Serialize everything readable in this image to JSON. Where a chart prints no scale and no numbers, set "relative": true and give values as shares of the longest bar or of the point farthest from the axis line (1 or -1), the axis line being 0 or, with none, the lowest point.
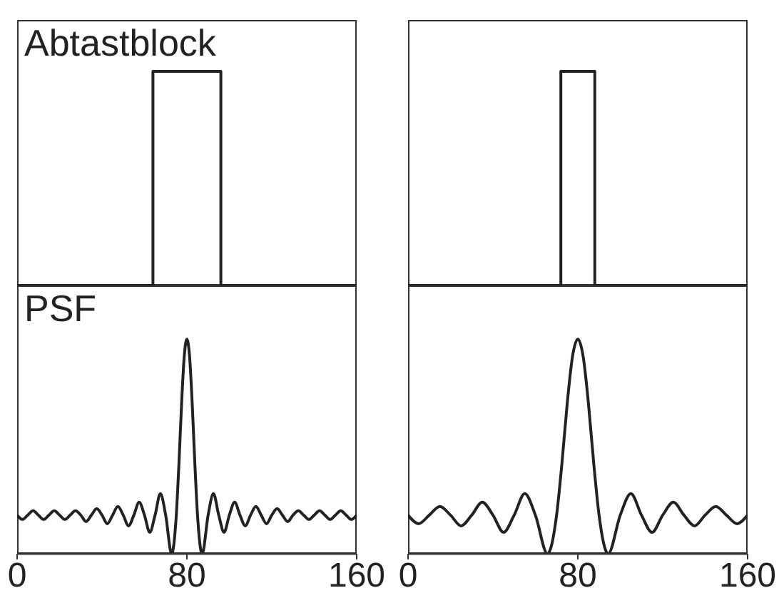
{
  "chart_data": [
    {
      "type": "step",
      "title": "Abtastblock",
      "relative": true,
      "color": "#222222",
      "x": [
        0,
        64,
        96,
        160
      ],
      "values": [
        0,
        1,
        0,
        0
      ],
      "xlim": [
        0,
        160
      ],
      "xticks": [
        0,
        80,
        160
      ],
      "tick_labels": false
    },
    {
      "type": "step",
      "relative": true,
      "color": "#222222",
      "x": [
        0,
        72,
        88,
        160
      ],
      "values": [
        0,
        1,
        0,
        0
      ],
      "xlim": [
        0,
        160
      ],
      "xticks": [
        0,
        80,
        160
      ],
      "tick_labels": false
    },
    {
      "type": "line",
      "title": "PSF",
      "relative": true,
      "color": "#222222",
      "x": [
        0,
        2.5,
        5,
        7.5,
        10,
        12.5,
        15,
        17.5,
        20,
        22.5,
        25,
        27.5,
        30,
        32.5,
        35,
        37.5,
        40,
        42.5,
        45,
        47.5,
        50,
        52.5,
        55,
        57.5,
        60,
        62.5,
        65,
        67.5,
        70,
        72.8,
        75,
        76.25,
        77.5,
        78.75,
        80,
        81.25,
        82.5,
        83.75,
        85,
        87.2,
        90,
        92.5,
        95,
        97.5,
        100,
        102.5,
        105,
        107.5,
        110,
        112.5,
        115,
        117.5,
        120,
        122.5,
        125,
        127.5,
        130,
        132.5,
        135,
        137.5,
        140,
        142.5,
        145,
        147.5,
        150,
        152.5,
        155,
        157.5,
        160
      ],
      "values": [
        0.18,
        0.16,
        0.18,
        0.2,
        0.18,
        0.16,
        0.18,
        0.2,
        0.18,
        0.16,
        0.18,
        0.2,
        0.18,
        0.15,
        0.18,
        0.21,
        0.18,
        0.14,
        0.18,
        0.22,
        0.18,
        0.13,
        0.18,
        0.24,
        0.18,
        0.1,
        0.18,
        0.28,
        0.18,
        0,
        0.18,
        0.42,
        0.7,
        0.92,
        1,
        0.92,
        0.7,
        0.42,
        0.18,
        0,
        0.18,
        0.28,
        0.18,
        0.1,
        0.18,
        0.24,
        0.18,
        0.13,
        0.18,
        0.22,
        0.18,
        0.14,
        0.18,
        0.21,
        0.18,
        0.15,
        0.18,
        0.2,
        0.18,
        0.16,
        0.18,
        0.2,
        0.18,
        0.16,
        0.18,
        0.2,
        0.18,
        0.16,
        0.18
      ],
      "xlim": [
        0,
        160
      ],
      "xticks": [
        0,
        80,
        160
      ],
      "tick_labels": "x"
    },
    {
      "type": "line",
      "relative": true,
      "color": "#222222",
      "x": [
        0,
        5,
        10,
        15,
        20,
        25,
        30,
        35,
        40,
        45,
        50,
        55,
        60,
        65.7,
        70,
        72.5,
        75,
        77.5,
        80,
        82.5,
        85,
        87.5,
        90,
        94.3,
        100,
        105,
        110,
        115,
        120,
        125,
        130,
        135,
        140,
        145,
        150,
        155,
        160
      ],
      "values": [
        0.18,
        0.14,
        0.18,
        0.22,
        0.18,
        0.13,
        0.18,
        0.24,
        0.18,
        0.1,
        0.18,
        0.28,
        0.18,
        0,
        0.18,
        0.42,
        0.7,
        0.92,
        1,
        0.92,
        0.7,
        0.42,
        0.18,
        0,
        0.18,
        0.28,
        0.18,
        0.1,
        0.18,
        0.24,
        0.18,
        0.13,
        0.18,
        0.22,
        0.18,
        0.14,
        0.18
      ],
      "xlim": [
        0,
        160
      ],
      "xticks": [
        0,
        80,
        160
      ],
      "tick_labels": "x"
    }
  ]
}
